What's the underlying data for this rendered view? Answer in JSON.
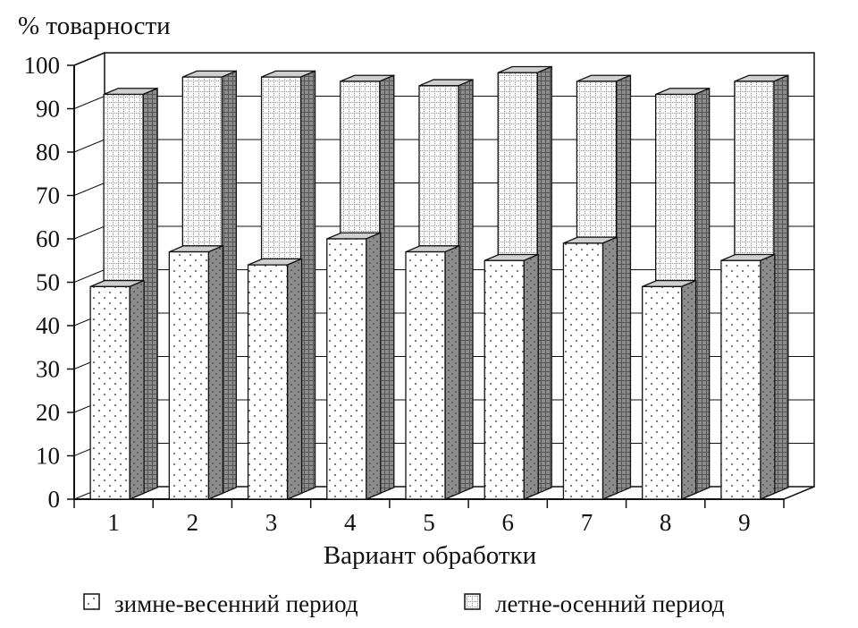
{
  "chart_data": {
    "type": "bar",
    "style": "3d-stacked-columns",
    "ylabel": "% товарности",
    "xlabel": "Вариант обработки",
    "categories": [
      "1",
      "2",
      "3",
      "4",
      "5",
      "6",
      "7",
      "8",
      "9"
    ],
    "y_ticks": [
      "0",
      "10",
      "20",
      "30",
      "40",
      "50",
      "60",
      "70",
      "80",
      "90",
      "100"
    ],
    "ylim": [
      0,
      100
    ],
    "grid": true,
    "legend_position": "bottom",
    "series": [
      {
        "name": "зимне-весенний период",
        "pattern": "dots",
        "values": [
          49,
          57,
          54,
          60,
          57,
          55,
          59,
          49,
          55
        ]
      },
      {
        "name": "летне-осенний период",
        "pattern": "grid",
        "values": [
          92,
          96,
          96,
          95,
          94,
          97,
          95,
          92,
          95
        ]
      }
    ],
    "colors": {
      "front": "#ffffff",
      "side": "#8c8c8c",
      "top": "#cfcfcf",
      "ink": "#111111"
    }
  }
}
